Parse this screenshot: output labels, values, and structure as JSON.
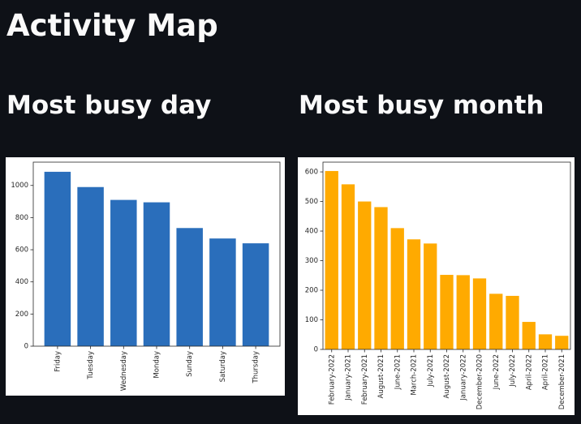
{
  "page": {
    "title": "Activity Map"
  },
  "sections": {
    "busy_day_title": "Most busy day",
    "busy_month_title": "Most busy month"
  },
  "colors": {
    "background": "#0e1117",
    "text": "#fafafa",
    "day_bar": "#2a6ebb",
    "month_bar": "#ffaa00"
  },
  "chart_data": [
    {
      "type": "bar",
      "categories": [
        "Friday",
        "Tuesday",
        "Wednesday",
        "Monday",
        "Sunday",
        "Saturday",
        "Thursday"
      ],
      "values": [
        1085,
        990,
        910,
        895,
        735,
        670,
        640
      ],
      "yticks": [
        0,
        200,
        400,
        600,
        800,
        1000
      ],
      "ylim": [
        0,
        1145
      ],
      "grid": false,
      "color": "#2a6ebb",
      "title": "",
      "xlabel": "",
      "ylabel": ""
    },
    {
      "type": "bar",
      "categories": [
        "February-2022",
        "January-2021",
        "February-2021",
        "August-2021",
        "June-2021",
        "March-2021",
        "July-2021",
        "August-2022",
        "January-2022",
        "December-2020",
        "June-2022",
        "July-2022",
        "April-2022",
        "April-2021",
        "December-2021"
      ],
      "values": [
        603,
        558,
        500,
        481,
        410,
        372,
        358,
        252,
        251,
        240,
        188,
        181,
        93,
        51,
        46
      ],
      "yticks": [
        0,
        100,
        200,
        300,
        400,
        500,
        600
      ],
      "ylim": [
        0,
        633
      ],
      "grid": false,
      "color": "#ffaa00",
      "title": "",
      "xlabel": "",
      "ylabel": ""
    }
  ]
}
